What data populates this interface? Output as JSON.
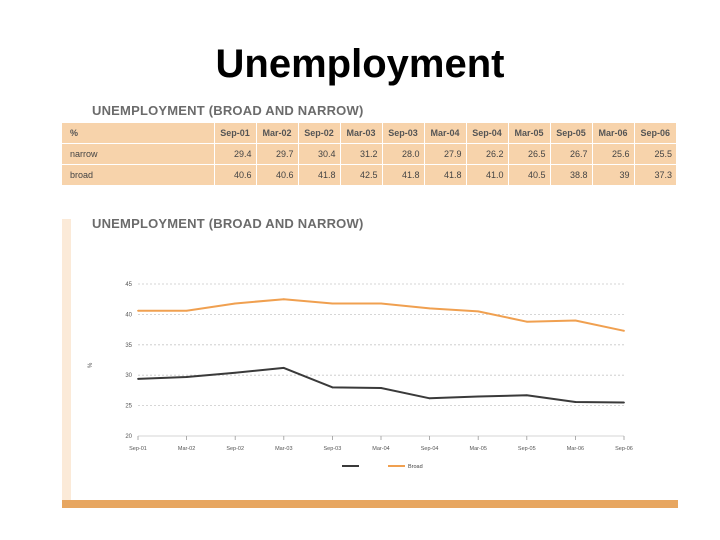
{
  "slide": {
    "title": "Unemployment"
  },
  "table": {
    "title": "UNEMPLOYMENT (BROAD AND NARROW)",
    "header": [
      "%",
      "Sep-01",
      "Mar-02",
      "Sep-02",
      "Mar-03",
      "Sep-03",
      "Mar-04",
      "Sep-04",
      "Mar-05",
      "Sep-05",
      "Mar-06",
      "Sep-06"
    ],
    "rows": [
      {
        "label": "narrow",
        "values": [
          "29.4",
          "29.7",
          "30.4",
          "31.2",
          "28.0",
          "27.9",
          "26.2",
          "26.5",
          "26.7",
          "25.6",
          "25.5"
        ]
      },
      {
        "label": "broad",
        "values": [
          "40.6",
          "40.6",
          "41.8",
          "42.5",
          "41.8",
          "41.8",
          "41.0",
          "40.5",
          "38.8",
          "39",
          "37.3"
        ]
      }
    ]
  },
  "chart_title": "UNEMPLOYMENT (BROAD AND NARROW)",
  "chart_data": {
    "type": "line",
    "categories": [
      "Sep-01",
      "Mar-02",
      "Sep-02",
      "Mar-03",
      "Sep-03",
      "Mar-04",
      "Sep-04",
      "Mar-05",
      "Sep-05",
      "Mar-06",
      "Sep-06"
    ],
    "series": [
      {
        "name": "",
        "color": "#3a3a3a",
        "values": [
          29.4,
          29.7,
          30.4,
          31.2,
          28.0,
          27.9,
          26.2,
          26.5,
          26.7,
          25.6,
          25.5
        ]
      },
      {
        "name": "Broad",
        "color": "#f0a050",
        "values": [
          40.6,
          40.6,
          41.8,
          42.5,
          41.8,
          41.8,
          41.0,
          40.5,
          38.8,
          39,
          37.3
        ]
      }
    ],
    "title": "UNEMPLOYMENT (BROAD AND NARROW)",
    "ylabel": "%",
    "ylim": [
      20,
      45
    ],
    "yticks": [
      20,
      25,
      30,
      35,
      40,
      45
    ],
    "grid": true,
    "legend_position": "bottom-center"
  }
}
